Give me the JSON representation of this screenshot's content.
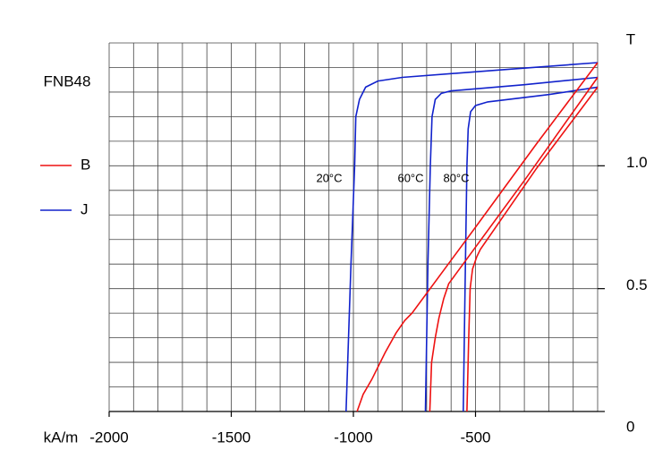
{
  "chart_data": {
    "type": "line",
    "title": "FNB48",
    "x_label": "kA/m",
    "y_label": "T",
    "xlim": [
      -2000,
      0
    ],
    "ylim": [
      0,
      1.5
    ],
    "xticks": [
      -2000,
      -1500,
      -1000,
      -500
    ],
    "yticks": [
      0,
      0.5,
      {
        "value": 1,
        "label": "1.0"
      }
    ],
    "xgrid": [
      -2000,
      -1900,
      -1800,
      -1700,
      -1600,
      -1500,
      -1400,
      -1300,
      -1200,
      -1100,
      -1000,
      -900,
      -800,
      -700,
      -600,
      -500,
      -400,
      -300,
      -200,
      -100,
      0
    ],
    "ygrid": [
      0,
      0.1,
      0.2,
      0.3,
      0.4,
      0.5,
      0.6,
      0.7,
      0.8,
      0.9,
      1,
      1.1,
      1.2,
      1.3,
      1.4,
      1.5
    ],
    "grid": true,
    "legend": [
      {
        "name": "B",
        "color": "#ee1111"
      },
      {
        "name": "J",
        "color": "#1122cc"
      }
    ],
    "annotations": [
      "20°C",
      "60°C",
      "80°C"
    ],
    "series": [
      {
        "color": "#1122cc",
        "x": [
          -1030,
          -1010,
          -995,
          -990,
          -975,
          -950,
          -900,
          -800,
          -400,
          0
        ],
        "values": [
          0,
          0.6,
          1.0,
          1.2,
          1.27,
          1.32,
          1.345,
          1.36,
          1.39,
          1.42
        ]
      },
      {
        "color": "#1122cc",
        "x": [
          -705,
          -695,
          -685,
          -678,
          -665,
          -640,
          -600,
          -300,
          0
        ],
        "values": [
          0,
          0.6,
          1.0,
          1.2,
          1.27,
          1.295,
          1.305,
          1.33,
          1.36
        ]
      },
      {
        "color": "#1122cc",
        "x": [
          -550,
          -543,
          -535,
          -530,
          -520,
          -500,
          -450,
          -200,
          0
        ],
        "values": [
          0,
          0.5,
          1.0,
          1.15,
          1.22,
          1.245,
          1.26,
          1.29,
          1.32
        ]
      },
      {
        "color": "#ee1111",
        "x": [
          -985,
          -960,
          -925,
          -870,
          -825,
          -790,
          -760,
          -500,
          -250,
          0
        ],
        "values": [
          0,
          0.07,
          0.13,
          0.24,
          0.32,
          0.37,
          0.4,
          0.75,
          1.09,
          1.42
        ]
      },
      {
        "color": "#ee1111",
        "x": [
          -687,
          -680,
          -665,
          -650,
          -630,
          -610,
          -300,
          0
        ],
        "values": [
          0,
          0.2,
          0.3,
          0.38,
          0.46,
          0.52,
          0.94,
          1.36
        ]
      },
      {
        "color": "#ee1111",
        "x": [
          -535,
          -528,
          -522,
          -512,
          -495,
          -480,
          -250,
          0
        ],
        "values": [
          0,
          0.3,
          0.5,
          0.58,
          0.63,
          0.66,
          0.99,
          1.32
        ]
      }
    ]
  }
}
